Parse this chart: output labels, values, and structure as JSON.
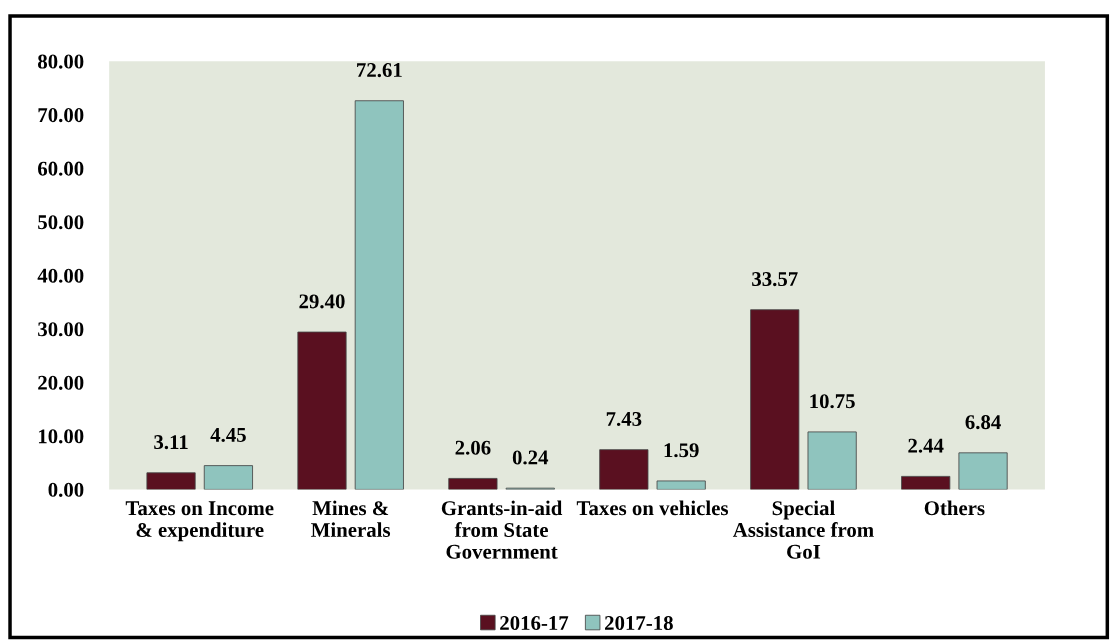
{
  "chart_data": {
    "type": "bar",
    "categories": [
      "Taxes on Income\n& expenditure",
      "Mines &\nMinerals",
      "Grants-in-aid\nfrom State\nGovernment",
      "Taxes on vehicles",
      "Special\nAssistance from\nGoI",
      "Others"
    ],
    "series": [
      {
        "name": "2016-17",
        "color": "#5a1020",
        "values": [
          3.11,
          29.4,
          2.06,
          7.43,
          33.57,
          2.44
        ],
        "value_labels": [
          "3.11",
          "29.40",
          "2.06",
          "7.43",
          "33.57",
          "2.44"
        ]
      },
      {
        "name": "2017-18",
        "color": "#8fc4be",
        "values": [
          4.45,
          72.61,
          0.24,
          1.59,
          10.75,
          6.84
        ],
        "value_labels": [
          "4.45",
          "72.61",
          "0.24",
          "1.59",
          "10.75",
          "6.84"
        ]
      }
    ],
    "ylim": [
      0,
      80
    ],
    "yticks": [
      {
        "value": 0,
        "label": "0.00"
      },
      {
        "value": 10,
        "label": "10.00"
      },
      {
        "value": 20,
        "label": "20.00"
      },
      {
        "value": 30,
        "label": "30.00"
      },
      {
        "value": 40,
        "label": "40.00"
      },
      {
        "value": 50,
        "label": "50.00"
      },
      {
        "value": 60,
        "label": "60.00"
      },
      {
        "value": 70,
        "label": "70.00"
      },
      {
        "value": 80,
        "label": "80.00"
      }
    ],
    "grid": false,
    "legend": "bottom"
  }
}
